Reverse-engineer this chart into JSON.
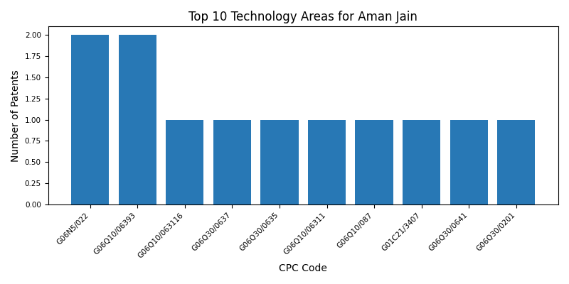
{
  "title": "Top 10 Technology Areas for Aman Jain",
  "xlabel": "CPC Code",
  "ylabel": "Number of Patents",
  "categories": [
    "G06N5/022",
    "G06Q10/06393",
    "G06Q10/063116",
    "G06Q30/0637",
    "G06Q30/0635",
    "G06Q10/06311",
    "G06Q10/087",
    "G01C21/3407",
    "G06Q30/0641",
    "G06Q30/0201"
  ],
  "values": [
    2,
    2,
    1,
    1,
    1,
    1,
    1,
    1,
    1,
    1
  ],
  "bar_color": "#2878b5",
  "ylim": [
    0,
    2.1
  ],
  "yticks": [
    0.0,
    0.25,
    0.5,
    0.75,
    1.0,
    1.25,
    1.5,
    1.75,
    2.0
  ],
  "figsize": [
    8.0,
    4.0
  ],
  "dpi": 100,
  "title_fontsize": 12,
  "label_fontsize": 10,
  "tick_fontsize": 7.5,
  "bar_width": 0.8
}
